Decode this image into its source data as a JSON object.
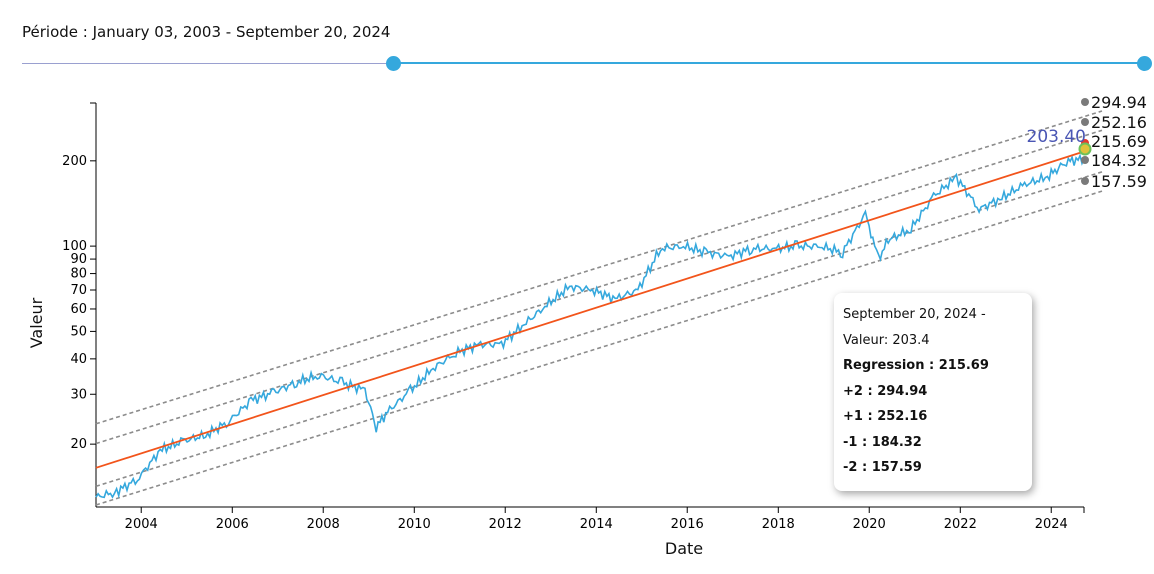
{
  "header": {
    "period_label": "Période : January 03, 2003 - September 20, 2024"
  },
  "slider": {
    "start_fraction": 0.331,
    "end_fraction": 1.0
  },
  "colors": {
    "price": "#35a8dd",
    "regression": "#f2541b",
    "band": "#8c8c8c",
    "last_label": "#4a56b4",
    "handle": "#35a8dd"
  },
  "tooltip": {
    "date_line": "September 20, 2024 -",
    "value_line": "Valeur: 203.4",
    "regression_line": "Regression : 215.69",
    "plus2_line": "+2 : 294.94",
    "plus1_line": "+1 : 252.16",
    "minus1_line": "-1 : 184.32",
    "minus2_line": "-2 : 157.59"
  },
  "chart_data": {
    "type": "line",
    "xlabel": "Date",
    "ylabel": "Valeur",
    "y_scale": "log",
    "x_range": [
      "2003-01-03",
      "2024-09-20"
    ],
    "y_range": [
      12,
      320
    ],
    "x_ticks": [
      "2004",
      "2006",
      "2008",
      "2010",
      "2012",
      "2014",
      "2016",
      "2018",
      "2020",
      "2022",
      "2024"
    ],
    "y_ticks": [
      "20",
      "30",
      "40",
      "50",
      "60",
      "70",
      "80",
      "90",
      "100",
      "200"
    ],
    "series": [
      {
        "name": "Valeur",
        "points": [
          [
            "2003-01-03",
            13
          ],
          [
            "2003-06-01",
            13.5
          ],
          [
            "2003-12-01",
            15
          ],
          [
            "2004-06-01",
            19
          ],
          [
            "2004-12-01",
            20.5
          ],
          [
            "2005-06-01",
            21.5
          ],
          [
            "2005-12-01",
            24
          ],
          [
            "2006-06-01",
            28.5
          ],
          [
            "2006-12-01",
            30.5
          ],
          [
            "2007-06-01",
            33
          ],
          [
            "2007-12-01",
            35
          ],
          [
            "2008-06-01",
            33
          ],
          [
            "2008-12-01",
            31
          ],
          [
            "2009-03-01",
            23
          ],
          [
            "2009-06-01",
            26
          ],
          [
            "2009-12-01",
            31
          ],
          [
            "2010-06-01",
            37
          ],
          [
            "2010-12-01",
            42
          ],
          [
            "2011-06-01",
            45
          ],
          [
            "2011-12-01",
            45
          ],
          [
            "2012-06-01",
            53
          ],
          [
            "2012-12-01",
            62
          ],
          [
            "2013-06-01",
            72
          ],
          [
            "2013-12-01",
            70
          ],
          [
            "2014-06-01",
            65
          ],
          [
            "2014-12-01",
            70
          ],
          [
            "2015-06-01",
            98
          ],
          [
            "2015-12-01",
            100
          ],
          [
            "2016-06-01",
            95
          ],
          [
            "2016-12-01",
            92
          ],
          [
            "2017-06-01",
            98
          ],
          [
            "2017-12-01",
            98
          ],
          [
            "2018-06-01",
            100
          ],
          [
            "2018-12-01",
            100
          ],
          [
            "2019-06-01",
            95
          ],
          [
            "2019-12-01",
            130
          ],
          [
            "2020-03-15",
            90
          ],
          [
            "2020-06-01",
            105
          ],
          [
            "2020-12-01",
            115
          ],
          [
            "2021-06-01",
            150
          ],
          [
            "2021-12-01",
            175
          ],
          [
            "2022-06-01",
            135
          ],
          [
            "2022-12-01",
            148
          ],
          [
            "2023-06-01",
            165
          ],
          [
            "2023-12-01",
            175
          ],
          [
            "2024-03-01",
            190
          ],
          [
            "2024-06-01",
            200
          ],
          [
            "2024-09-20",
            203.4
          ]
        ]
      }
    ],
    "regression": {
      "start": [
        "2003-01-03",
        16.5
      ],
      "end": [
        "2024-09-20",
        215.69
      ]
    },
    "bands": [
      {
        "name": "+2",
        "start": 23.6,
        "end": 294.94
      },
      {
        "name": "+1",
        "start": 20.1,
        "end": 252.16
      },
      {
        "name": "-1",
        "start": 14.2,
        "end": 184.32
      },
      {
        "name": "-2",
        "start": 12.2,
        "end": 157.59
      }
    ],
    "end_labels": [
      "294.94",
      "252.16",
      "215.69",
      "184.32",
      "157.59"
    ],
    "last_value_label": "203.40"
  }
}
